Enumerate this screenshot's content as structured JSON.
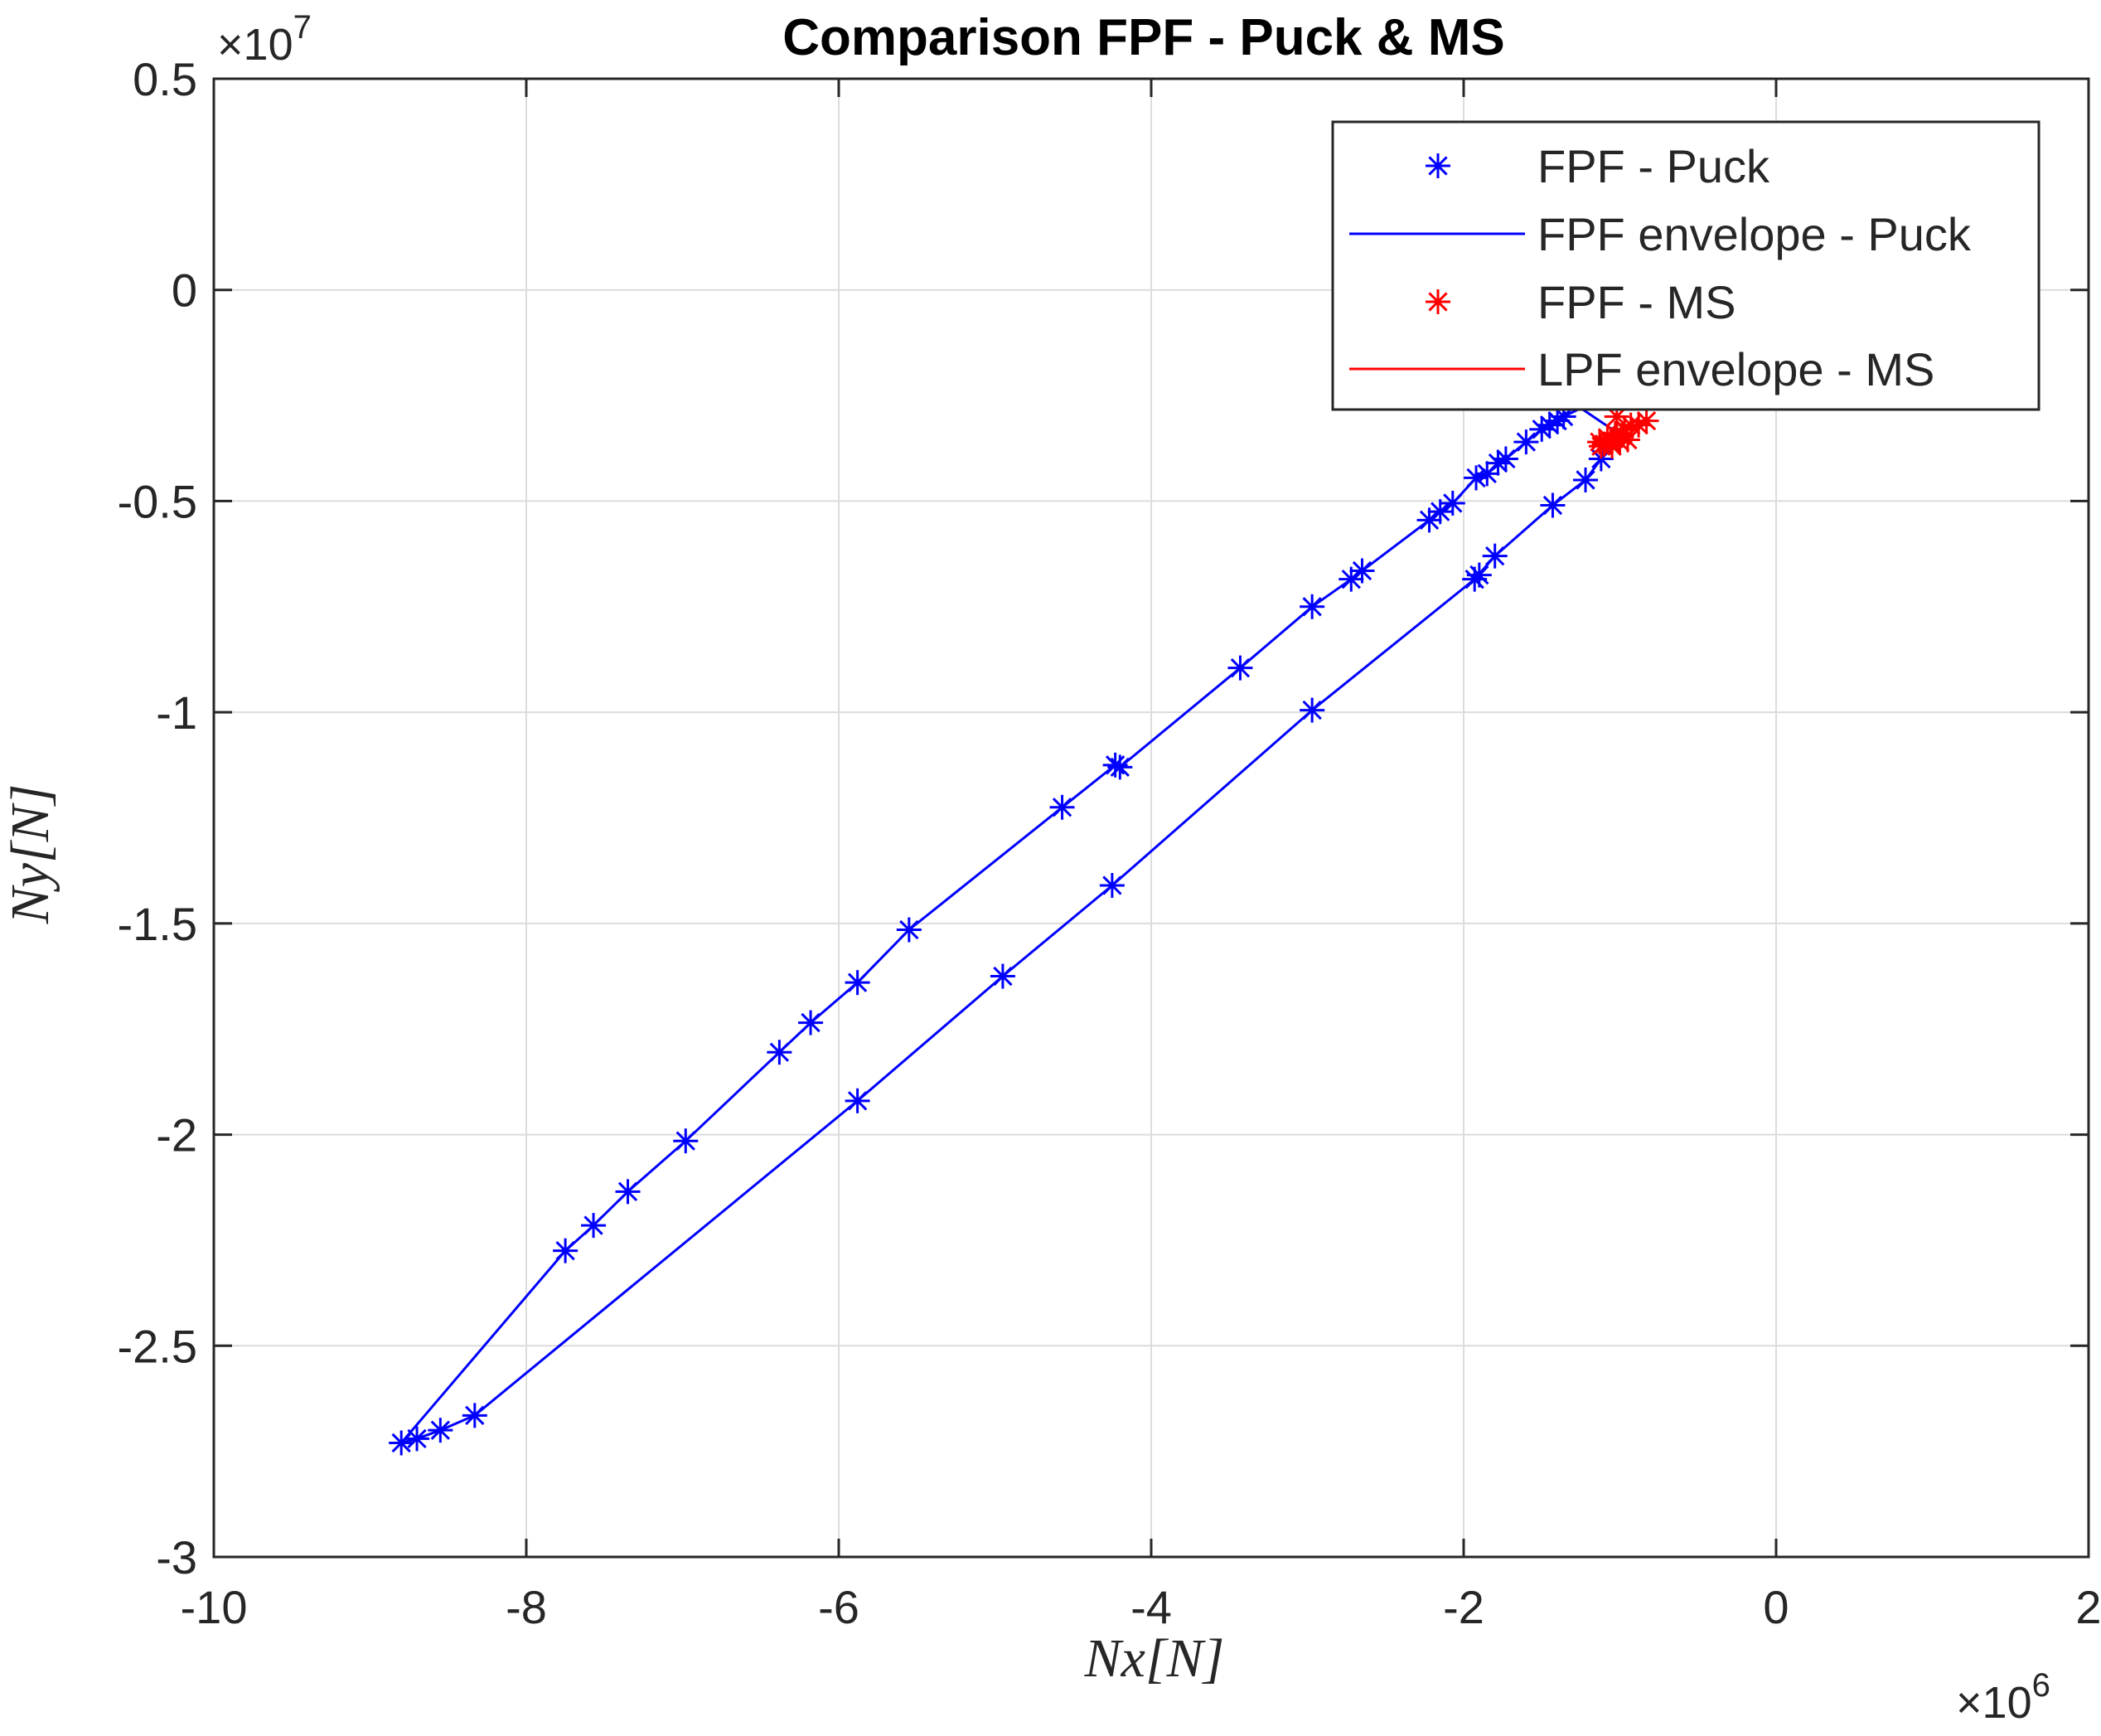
{
  "chart_data": {
    "type": "scatter",
    "title": "Comparison FPF - Puck & MS",
    "xlabel": "Nx[N]",
    "ylabel": "Ny[N]",
    "x_multiplier": "×10",
    "x_exponent": "6",
    "y_multiplier": "×10",
    "y_exponent": "7",
    "xlim": [
      -10,
      2
    ],
    "ylim": [
      -3,
      0.5
    ],
    "x_ticks": [
      -10,
      -8,
      -6,
      -4,
      -2,
      0,
      2
    ],
    "x_tick_labels": [
      "-10",
      "-8",
      "-6",
      "-4",
      "-2",
      "0",
      "2"
    ],
    "y_ticks": [
      -3,
      -2.5,
      -2,
      -1.5,
      -1,
      -0.5,
      0,
      0.5
    ],
    "y_tick_labels": [
      "-3",
      "-2.5",
      "-2",
      "-1.5",
      "-1",
      "-0.5",
      "0",
      "0.5"
    ],
    "grid": true,
    "legend_position": "top-right",
    "series": [
      {
        "name": "FPF - Puck",
        "kind": "markers",
        "marker": "asterisk",
        "color": "#0000ff",
        "x": [
          -8.8,
          -8.7,
          -8.55,
          -8.33,
          -7.75,
          -7.57,
          -7.35,
          -6.98,
          -6.38,
          -6.18,
          -5.88,
          -5.55,
          -4.57,
          -4.23,
          -4.2,
          -3.43,
          -2.97,
          -2.72,
          -2.65,
          -2.22,
          -2.15,
          -2.07,
          -1.92,
          -1.85,
          -1.78,
          -1.73,
          -1.6,
          -1.5,
          -1.45,
          -1.4,
          -1.36,
          -4.25,
          -4.95,
          -5.88,
          -2.97,
          -1.93,
          -1.9,
          -1.8,
          -1.43,
          -1.22,
          -1.12
        ],
        "y": [
          -2.73,
          -2.72,
          -2.7,
          -2.665,
          -2.275,
          -2.215,
          -2.135,
          -2.015,
          -1.805,
          -1.735,
          -1.64,
          -1.515,
          -1.225,
          -1.125,
          -1.13,
          -0.895,
          -0.75,
          -0.685,
          -0.665,
          -0.545,
          -0.525,
          -0.505,
          -0.445,
          -0.435,
          -0.41,
          -0.4,
          -0.36,
          -0.33,
          -0.32,
          -0.31,
          -0.3,
          -1.41,
          -1.625,
          -1.92,
          -0.995,
          -0.685,
          -0.675,
          -0.63,
          -0.51,
          -0.45,
          -0.4
        ]
      },
      {
        "name": "FPF envelope - Puck",
        "kind": "line",
        "color": "#0000ff",
        "x": [
          -8.8,
          -8.7,
          -8.55,
          -8.33,
          -5.88,
          -4.95,
          -4.25,
          -2.97,
          -1.93,
          -1.8,
          -1.43,
          -1.22,
          -1.12,
          -1.05,
          -1.25,
          -1.36,
          -1.45,
          -1.5,
          -1.6,
          -1.73,
          -1.85,
          -1.92,
          -2.07,
          -2.15,
          -2.22,
          -2.65,
          -2.72,
          -2.97,
          -3.43,
          -4.2,
          -4.23,
          -4.57,
          -5.55,
          -5.88,
          -6.18,
          -6.38,
          -6.98,
          -7.35,
          -7.57,
          -7.75,
          -8.8
        ],
        "y": [
          -2.73,
          -2.72,
          -2.7,
          -2.665,
          -1.92,
          -1.625,
          -1.41,
          -0.995,
          -0.685,
          -0.63,
          -0.51,
          -0.45,
          -0.4,
          -0.33,
          -0.28,
          -0.3,
          -0.32,
          -0.33,
          -0.36,
          -0.4,
          -0.435,
          -0.445,
          -0.505,
          -0.525,
          -0.545,
          -0.665,
          -0.685,
          -0.75,
          -0.895,
          -1.13,
          -1.125,
          -1.225,
          -1.515,
          -1.64,
          -1.735,
          -1.805,
          -2.015,
          -2.135,
          -2.215,
          -2.275,
          -2.73
        ]
      },
      {
        "name": "FPF - MS",
        "kind": "markers",
        "marker": "asterisk",
        "color": "#ff0000",
        "x": [
          -1.13,
          -1.1,
          -1.08,
          -1.05,
          -1.03,
          -1.0,
          -0.97,
          -0.93,
          -0.88,
          -0.83,
          -1.12,
          -1.06,
          -0.99,
          -0.95,
          -1.02
        ],
        "y": [
          -0.36,
          -0.365,
          -0.35,
          -0.37,
          -0.34,
          -0.36,
          -0.33,
          -0.32,
          -0.32,
          -0.31,
          -0.37,
          -0.36,
          -0.345,
          -0.355,
          -0.3
        ]
      },
      {
        "name": "LPF envelope - MS",
        "kind": "line",
        "color": "#ff0000",
        "x": [
          -1.13,
          -1.08,
          -1.03,
          -0.97,
          -0.88,
          -0.83,
          -0.88,
          -0.95,
          -1.03,
          -1.12,
          -1.13
        ],
        "y": [
          -0.36,
          -0.35,
          -0.34,
          -0.33,
          -0.32,
          -0.31,
          -0.33,
          -0.355,
          -0.37,
          -0.37,
          -0.36
        ]
      }
    ]
  }
}
